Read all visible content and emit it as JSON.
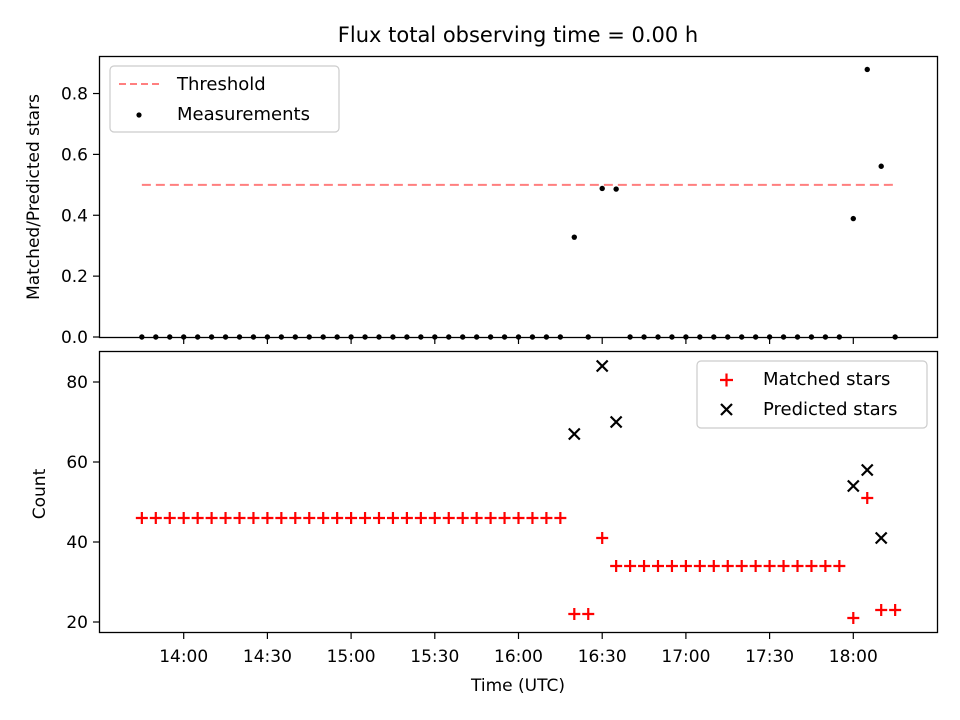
{
  "chart_data": [
    {
      "type": "scatter",
      "title": "Flux total observing time = 0.00 h",
      "ylabel": "Matched/Predicted stars",
      "ylim": [
        0,
        0.92
      ],
      "yticks": [
        "0.0",
        "0.2",
        "0.4",
        "0.6",
        "0.8"
      ],
      "legend_position": "top-left",
      "threshold": {
        "name": "Threshold",
        "value": 0.5,
        "x_start": "13:45",
        "x_end": "18:15",
        "color": "#ff7f7f"
      },
      "series": [
        {
          "name": "Measurements",
          "color": "#000000",
          "points": [
            [
              "13:45",
              0
            ],
            [
              "13:50",
              0
            ],
            [
              "13:55",
              0
            ],
            [
              "14:00",
              0
            ],
            [
              "14:05",
              0
            ],
            [
              "14:10",
              0
            ],
            [
              "14:15",
              0
            ],
            [
              "14:20",
              0
            ],
            [
              "14:25",
              0
            ],
            [
              "14:30",
              0
            ],
            [
              "14:35",
              0
            ],
            [
              "14:40",
              0
            ],
            [
              "14:45",
              0
            ],
            [
              "14:50",
              0
            ],
            [
              "14:55",
              0
            ],
            [
              "15:00",
              0
            ],
            [
              "15:05",
              0
            ],
            [
              "15:10",
              0
            ],
            [
              "15:15",
              0
            ],
            [
              "15:20",
              0
            ],
            [
              "15:25",
              0
            ],
            [
              "15:30",
              0
            ],
            [
              "15:35",
              0
            ],
            [
              "15:40",
              0
            ],
            [
              "15:45",
              0
            ],
            [
              "15:50",
              0
            ],
            [
              "15:55",
              0
            ],
            [
              "16:00",
              0
            ],
            [
              "16:05",
              0
            ],
            [
              "16:10",
              0
            ],
            [
              "16:15",
              0
            ],
            [
              "16:20",
              0.328
            ],
            [
              "16:25",
              0
            ],
            [
              "16:30",
              0.488
            ],
            [
              "16:35",
              0.486
            ],
            [
              "16:40",
              0
            ],
            [
              "16:45",
              0
            ],
            [
              "16:50",
              0
            ],
            [
              "16:55",
              0
            ],
            [
              "17:00",
              0
            ],
            [
              "17:05",
              0
            ],
            [
              "17:10",
              0
            ],
            [
              "17:15",
              0
            ],
            [
              "17:20",
              0
            ],
            [
              "17:25",
              0
            ],
            [
              "17:30",
              0
            ],
            [
              "17:35",
              0
            ],
            [
              "17:40",
              0
            ],
            [
              "17:45",
              0
            ],
            [
              "17:50",
              0
            ],
            [
              "17:55",
              0
            ],
            [
              "18:00",
              0.389
            ],
            [
              "18:05",
              0.879
            ],
            [
              "18:10",
              0.561
            ],
            [
              "18:15",
              0
            ]
          ]
        }
      ]
    },
    {
      "type": "scatter",
      "xlabel": "Time (UTC)",
      "ylabel": "Count",
      "ylim": [
        17.5,
        87.5
      ],
      "yticks": [
        "20",
        "40",
        "60",
        "80"
      ],
      "xlim": [
        "13:30",
        "18:30"
      ],
      "xticks": [
        "14:00",
        "14:30",
        "15:00",
        "15:30",
        "16:00",
        "16:30",
        "17:00",
        "17:30",
        "18:00"
      ],
      "legend_position": "top-right",
      "series": [
        {
          "name": "Matched stars",
          "color": "#ff0000",
          "marker": "plus",
          "points": [
            [
              "13:45",
              46
            ],
            [
              "13:50",
              46
            ],
            [
              "13:55",
              46
            ],
            [
              "14:00",
              46
            ],
            [
              "14:05",
              46
            ],
            [
              "14:10",
              46
            ],
            [
              "14:15",
              46
            ],
            [
              "14:20",
              46
            ],
            [
              "14:25",
              46
            ],
            [
              "14:30",
              46
            ],
            [
              "14:35",
              46
            ],
            [
              "14:40",
              46
            ],
            [
              "14:45",
              46
            ],
            [
              "14:50",
              46
            ],
            [
              "14:55",
              46
            ],
            [
              "15:00",
              46
            ],
            [
              "15:05",
              46
            ],
            [
              "15:10",
              46
            ],
            [
              "15:15",
              46
            ],
            [
              "15:20",
              46
            ],
            [
              "15:25",
              46
            ],
            [
              "15:30",
              46
            ],
            [
              "15:35",
              46
            ],
            [
              "15:40",
              46
            ],
            [
              "15:45",
              46
            ],
            [
              "15:50",
              46
            ],
            [
              "15:55",
              46
            ],
            [
              "16:00",
              46
            ],
            [
              "16:05",
              46
            ],
            [
              "16:10",
              46
            ],
            [
              "16:15",
              46
            ],
            [
              "16:20",
              22
            ],
            [
              "16:25",
              22
            ],
            [
              "16:30",
              41
            ],
            [
              "16:35",
              34
            ],
            [
              "16:40",
              34
            ],
            [
              "16:45",
              34
            ],
            [
              "16:50",
              34
            ],
            [
              "16:55",
              34
            ],
            [
              "17:00",
              34
            ],
            [
              "17:05",
              34
            ],
            [
              "17:10",
              34
            ],
            [
              "17:15",
              34
            ],
            [
              "17:20",
              34
            ],
            [
              "17:25",
              34
            ],
            [
              "17:30",
              34
            ],
            [
              "17:35",
              34
            ],
            [
              "17:40",
              34
            ],
            [
              "17:45",
              34
            ],
            [
              "17:50",
              34
            ],
            [
              "17:55",
              34
            ],
            [
              "18:00",
              21
            ],
            [
              "18:05",
              51
            ],
            [
              "18:10",
              23
            ],
            [
              "18:15",
              23
            ]
          ]
        },
        {
          "name": "Predicted stars",
          "color": "#000000",
          "marker": "x",
          "points": [
            [
              "16:20",
              67
            ],
            [
              "16:30",
              84
            ],
            [
              "16:35",
              70
            ],
            [
              "18:00",
              54
            ],
            [
              "18:05",
              58
            ],
            [
              "18:10",
              41
            ]
          ]
        }
      ]
    }
  ]
}
